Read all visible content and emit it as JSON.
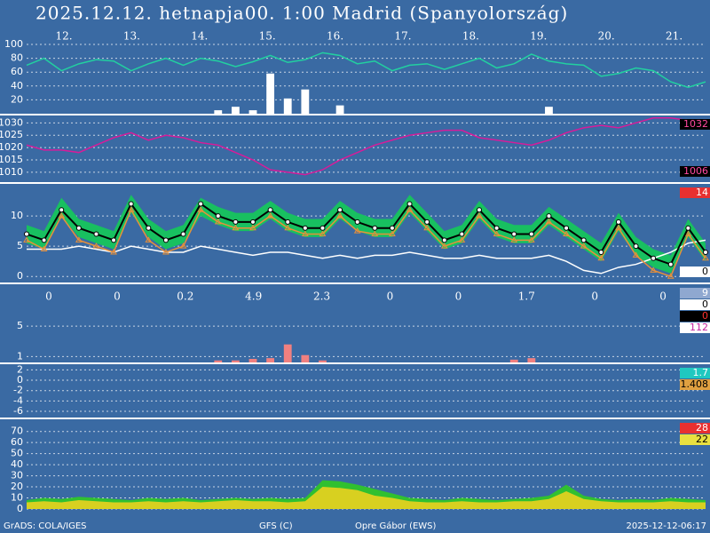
{
  "header": {
    "title": "2025.12.12. hetnapja00. 1:00   Madrid (Spanyolország)"
  },
  "days": [
    "12.",
    "13.",
    "14.",
    "15.",
    "16.",
    "17.",
    "18.",
    "19.",
    "20.",
    "21."
  ],
  "footer": [
    "GrADS: COLA/IGES",
    "GFS (C)",
    "Opre Gábor (EWS)",
    "2025-12-12-06:17"
  ],
  "chart_data": [
    {
      "type": "line",
      "ylim": [
        0,
        100
      ],
      "yticks": [
        20,
        40,
        60,
        80,
        100
      ],
      "grid": true,
      "series": [
        {
          "style": "bars",
          "color": "#ffffff",
          "values": [
            0,
            0,
            0,
            0,
            0,
            0,
            0,
            0,
            0,
            0,
            0,
            5,
            10,
            5,
            58,
            22,
            35,
            0,
            12,
            0,
            0,
            0,
            0,
            0,
            0,
            0,
            0,
            0,
            0,
            0,
            10,
            0,
            0,
            0,
            0,
            0,
            0,
            0,
            0,
            0
          ]
        },
        {
          "style": "line",
          "color": "#22d0a0",
          "values": [
            70,
            80,
            62,
            72,
            78,
            76,
            62,
            72,
            80,
            70,
            80,
            76,
            68,
            75,
            84,
            74,
            78,
            88,
            84,
            72,
            76,
            62,
            70,
            72,
            64,
            72,
            80,
            66,
            72,
            86,
            76,
            72,
            70,
            54,
            58,
            66,
            62,
            46,
            38,
            46
          ]
        }
      ]
    },
    {
      "type": "line",
      "ylim": [
        1006,
        1033
      ],
      "yticks": [
        1010,
        1015,
        1020,
        1025,
        1030
      ],
      "grid": true,
      "series": [
        {
          "style": "line",
          "color": "#d81b9a",
          "values": [
            1021,
            1019,
            1019,
            1018,
            1021,
            1024,
            1026,
            1023,
            1025,
            1024,
            1022,
            1021,
            1018,
            1015,
            1011,
            1010,
            1009,
            1011,
            1015,
            1018,
            1021,
            1023,
            1025,
            1026,
            1027,
            1027,
            1024,
            1023,
            1022,
            1021,
            1023,
            1026,
            1028,
            1029,
            1028,
            1030,
            1032,
            1032,
            1031,
            1031
          ]
        }
      ],
      "side_labels": [
        {
          "value": 1032,
          "bg": "#000000",
          "fg": "#ff4aa0"
        },
        {
          "value": 1006,
          "bg": "#000000",
          "fg": "#ff4aa0"
        }
      ]
    },
    {
      "type": "line",
      "ylim": [
        -1,
        15.3
      ],
      "yticks": [
        0,
        5,
        10
      ],
      "grid": true,
      "series": [
        {
          "style": "band",
          "color": "#18c060",
          "upper": [
            8.5,
            7.5,
            13,
            9.5,
            8.5,
            7.5,
            13.5,
            9.5,
            7.5,
            8.5,
            13,
            11.5,
            10.5,
            10.5,
            12.5,
            10.5,
            9.5,
            9.5,
            12.5,
            10.5,
            9.5,
            9.5,
            13.5,
            10.5,
            7.5,
            8.5,
            12.5,
            9.5,
            8.5,
            8.5,
            11.5,
            9.5,
            7.5,
            5.5,
            10.5,
            6.5,
            4.5,
            3.5,
            9.5,
            5.5
          ],
          "lower": [
            5.5,
            4.5,
            10,
            6.5,
            5.5,
            4.5,
            10.5,
            6.5,
            4.5,
            5.5,
            10,
            8.5,
            7.5,
            7.5,
            9.5,
            7.5,
            6.5,
            6.5,
            9.5,
            7.5,
            6.5,
            6.5,
            10.5,
            7.5,
            4.5,
            5.5,
            9.5,
            6.5,
            5.5,
            5.5,
            8.5,
            6.5,
            4.5,
            2.5,
            7.5,
            3.5,
            1.5,
            0.5,
            6.5,
            2.5
          ]
        },
        {
          "style": "line",
          "color": "#ffffff",
          "values": [
            4.5,
            4.5,
            4.5,
            5,
            4.5,
            4,
            5,
            4.5,
            4,
            4,
            5,
            4.5,
            4,
            3.5,
            4,
            4,
            3.5,
            3,
            3.5,
            3,
            3.5,
            3.5,
            4,
            3.5,
            3,
            3,
            3.5,
            3,
            3,
            3,
            3.5,
            2.5,
            1,
            0.5,
            1.5,
            2,
            3,
            4,
            5.5,
            6
          ]
        },
        {
          "style": "triangles",
          "color": "#e8903a",
          "values": [
            6,
            4.5,
            10,
            6,
            5,
            4,
            11,
            6,
            4,
            5,
            11,
            9,
            8,
            8,
            10,
            8,
            7,
            7,
            10,
            7.5,
            7,
            7,
            11,
            8,
            5,
            6,
            10,
            7,
            6,
            6,
            9,
            7,
            5,
            3,
            8,
            3.5,
            1,
            0,
            7,
            3
          ]
        },
        {
          "style": "dots",
          "color": "#000000",
          "values": [
            7,
            6,
            11,
            8,
            7,
            6,
            12,
            8,
            6,
            7,
            12,
            10,
            9,
            9,
            11,
            9,
            8,
            8,
            11,
            9,
            8,
            8,
            12,
            9,
            6,
            7,
            11,
            8,
            7,
            7,
            10,
            8,
            6,
            4,
            9,
            5,
            3,
            2,
            8,
            4
          ]
        }
      ],
      "side_labels": [
        {
          "value": 14,
          "bg": "#e83030",
          "fg": "#ffffff"
        },
        {
          "value": 0,
          "bg": "#ffffff",
          "fg": "#000000"
        }
      ]
    },
    {
      "type": "line",
      "ylim": [
        0,
        10.5
      ],
      "yticks": [
        1,
        5
      ],
      "grid": true,
      "day_totals": [
        0,
        0,
        0.2,
        4.9,
        2.3,
        0,
        0,
        1.7,
        0,
        0
      ],
      "series": [
        {
          "style": "bars",
          "color": "#f08080",
          "values": [
            0,
            0,
            0,
            0,
            0,
            0,
            0,
            0,
            0,
            0,
            0,
            0.5,
            0.5,
            0.7,
            0.8,
            2.6,
            1.2,
            0.5,
            0,
            0,
            0,
            0,
            0,
            0,
            0,
            0,
            0,
            0,
            0.6,
            0.8,
            0,
            0,
            0,
            0,
            0,
            0,
            0,
            0,
            0,
            0
          ]
        }
      ],
      "side_labels": [
        {
          "value": 9,
          "bg": "#8fa8d0",
          "fg": "#ffffff"
        },
        {
          "value": 0,
          "bg": "#ffffff",
          "fg": "#000000"
        },
        {
          "value": 0,
          "bg": "#000000",
          "fg": "#ff3030"
        },
        {
          "value": 112,
          "bg": "#ffffff",
          "fg": "#c020a0"
        }
      ]
    },
    {
      "type": "line",
      "ylim": [
        -7.2,
        3.1
      ],
      "yticks": [
        2,
        0,
        -2,
        -4,
        -6
      ],
      "grid": true,
      "series": [],
      "side_labels": [
        {
          "value": 1.7,
          "bg": "#20c8c0",
          "fg": "#ffffff"
        },
        {
          "value": 1.408,
          "bg": "#e0a040",
          "fg": "#000000"
        }
      ]
    },
    {
      "type": "area",
      "ylim": [
        0,
        81
      ],
      "yticks": [
        0,
        10,
        20,
        30,
        40,
        50,
        60,
        70
      ],
      "grid": true,
      "series": [
        {
          "style": "area",
          "color": "#30c030",
          "values": [
            8,
            10,
            9,
            11,
            10,
            9,
            8,
            10,
            9,
            10,
            8,
            9,
            10,
            9,
            10,
            9,
            10,
            26,
            25,
            22,
            18,
            14,
            10,
            9,
            8,
            10,
            9,
            8,
            9,
            10,
            12,
            22,
            12,
            9,
            8,
            9,
            8,
            10,
            9,
            8
          ]
        },
        {
          "style": "area",
          "color": "#d8d020",
          "values": [
            6,
            7,
            6,
            8,
            7,
            6,
            6,
            7,
            6,
            7,
            6,
            7,
            8,
            7,
            7,
            6,
            7,
            20,
            19,
            17,
            12,
            10,
            7,
            6,
            6,
            7,
            6,
            6,
            7,
            7,
            9,
            16,
            9,
            7,
            6,
            6,
            6,
            7,
            6,
            6
          ]
        }
      ],
      "side_labels": [
        {
          "value": 28,
          "bg": "#e83030",
          "fg": "#ffffff"
        },
        {
          "value": 22,
          "bg": "#e8e040",
          "fg": "#000000"
        }
      ]
    }
  ]
}
